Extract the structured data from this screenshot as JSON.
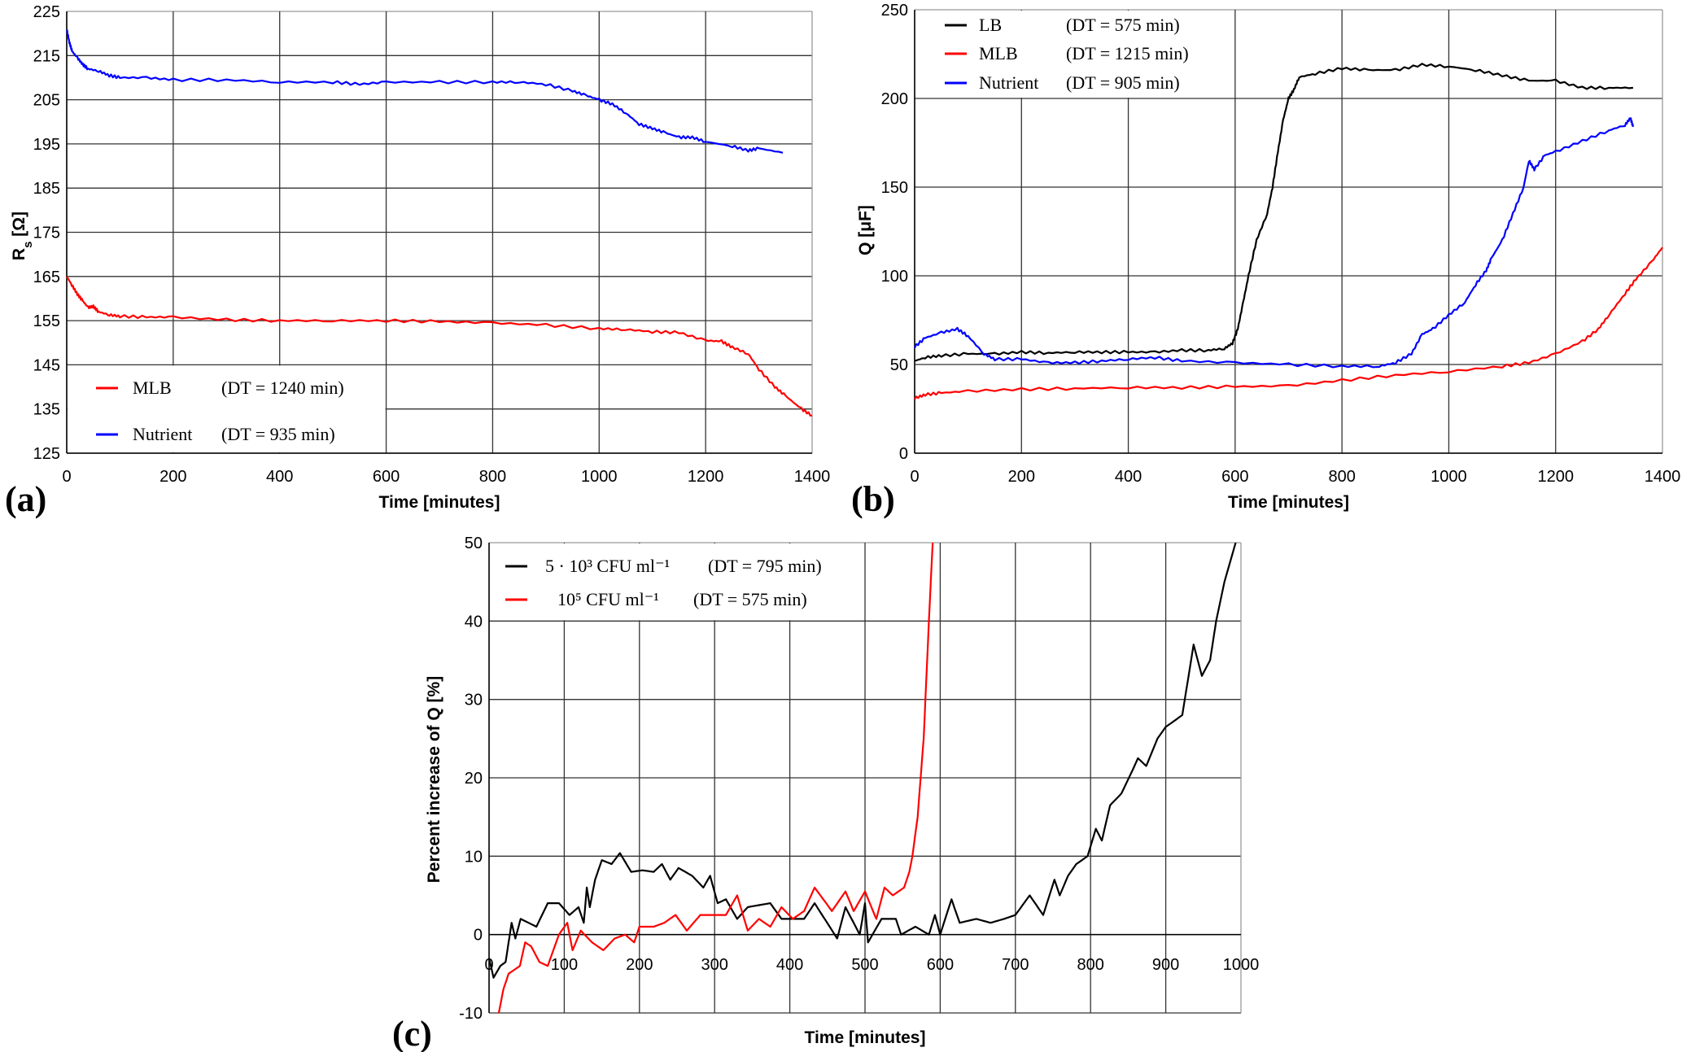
{
  "chart_data": [
    {
      "panel_label": "(a)",
      "type": "line",
      "xlabel": "Time [minutes]",
      "ylabel": {
        "base": "R",
        "sub": "s",
        "rest": " [Ω]"
      },
      "xlim": [
        0,
        1400
      ],
      "ylim": [
        125,
        225
      ],
      "xticks": [
        0,
        200,
        400,
        600,
        800,
        1000,
        1200,
        1400
      ],
      "yticks": [
        125,
        135,
        145,
        155,
        165,
        175,
        185,
        195,
        205,
        215,
        225
      ],
      "grid": true,
      "legend_placement": "bottom-left",
      "series": [
        {
          "name": "MLB",
          "dt": "(DT = 1240 min)",
          "color": "#ff0000",
          "x": [
            0,
            10,
            20,
            30,
            40,
            50,
            60,
            80,
            100,
            150,
            200,
            300,
            400,
            500,
            600,
            700,
            800,
            900,
            1000,
            1050,
            1100,
            1150,
            1200,
            1230,
            1250,
            1280,
            1300,
            1330,
            1350,
            1380,
            1400
          ],
          "y": [
            165,
            163,
            161,
            159.5,
            158,
            158.2,
            157,
            156.3,
            156,
            155.8,
            155.8,
            155.2,
            155,
            155,
            155,
            154.8,
            154.5,
            154,
            153.2,
            153,
            152.5,
            152.3,
            150.5,
            150.3,
            149,
            147.5,
            144,
            140,
            138,
            135,
            133.5
          ]
        },
        {
          "name": "Nutrient",
          "dt": "(DT = 935   min)",
          "color": "#0000ff",
          "x": [
            0,
            5,
            10,
            20,
            30,
            40,
            60,
            80,
            100,
            150,
            200,
            300,
            400,
            500,
            550,
            600,
            700,
            800,
            850,
            900,
            950,
            975,
            1000,
            1025,
            1050,
            1075,
            1100,
            1125,
            1150,
            1175,
            1200,
            1250,
            1280,
            1300,
            1345
          ],
          "y": [
            221,
            218,
            216,
            214.5,
            213,
            212,
            211.5,
            210.5,
            210,
            210,
            209.5,
            209.5,
            209,
            209,
            208.5,
            209,
            209,
            209,
            209,
            208.5,
            207,
            206,
            205,
            204,
            202,
            199.5,
            198.5,
            197.5,
            196.5,
            196.5,
            195.5,
            194.5,
            193.5,
            194,
            193
          ]
        }
      ]
    },
    {
      "panel_label": "(b)",
      "type": "line",
      "xlabel": "Time [minutes]",
      "ylabel": {
        "base": "Q [μF]",
        "sub": "",
        "rest": ""
      },
      "xlim": [
        0,
        1400
      ],
      "ylim": [
        0,
        250
      ],
      "xticks": [
        0,
        200,
        400,
        600,
        800,
        1000,
        1200,
        1400
      ],
      "yticks": [
        0,
        50,
        100,
        150,
        200,
        250
      ],
      "grid": true,
      "legend_placement": "top-left",
      "series": [
        {
          "name": "LB",
          "dt": "(DT = 575   min)",
          "color": "#000000",
          "x": [
            0,
            20,
            50,
            100,
            150,
            200,
            250,
            300,
            350,
            400,
            450,
            500,
            550,
            580,
            595,
            605,
            615,
            625,
            640,
            660,
            670,
            680,
            690,
            700,
            710,
            720,
            750,
            800,
            850,
            900,
            950,
            1000,
            1050,
            1100,
            1150,
            1200,
            1250,
            1300,
            1345
          ],
          "y": [
            52,
            54,
            55,
            56,
            56,
            57,
            56.5,
            57,
            57,
            57,
            57,
            58,
            58,
            59,
            62,
            70,
            85,
            100,
            120,
            135,
            150,
            170,
            188,
            200,
            205,
            212,
            214,
            217,
            216,
            216,
            219,
            218,
            216,
            213,
            210,
            210,
            206,
            206,
            206
          ]
        },
        {
          "name": "MLB",
          "dt": "(DT = 1215 min)",
          "color": "#ff0000",
          "x": [
            0,
            20,
            50,
            100,
            200,
            300,
            400,
            500,
            600,
            700,
            800,
            900,
            1000,
            1100,
            1150,
            1200,
            1250,
            1280,
            1300,
            1330,
            1350,
            1380,
            1400
          ],
          "y": [
            31,
            33,
            34,
            35,
            36,
            36.5,
            37,
            37,
            37.5,
            38,
            41,
            44,
            46,
            49,
            51,
            56,
            63,
            70,
            78,
            90,
            98,
            108,
            116
          ]
        },
        {
          "name": "Nutrient",
          "dt": "(DT = 905   min)",
          "color": "#0000ff",
          "x": [
            0,
            20,
            50,
            80,
            100,
            130,
            150,
            200,
            250,
            300,
            350,
            400,
            450,
            500,
            600,
            700,
            800,
            870,
            900,
            930,
            950,
            970,
            1000,
            1030,
            1050,
            1070,
            1080,
            1100,
            1120,
            1140,
            1150,
            1160,
            1180,
            1200,
            1250,
            1300,
            1330,
            1340,
            1345
          ],
          "y": [
            60,
            65,
            68,
            70,
            66,
            56,
            53,
            53,
            51,
            51,
            52,
            53,
            54,
            52,
            51,
            50,
            49,
            49,
            51,
            56,
            67,
            70,
            78,
            85,
            95,
            103,
            110,
            120,
            135,
            150,
            165,
            160,
            168,
            170,
            176,
            182,
            185,
            189,
            184
          ]
        },
        {
          "name": "",
          "dt": "",
          "color": "",
          "x": [],
          "y": []
        }
      ]
    },
    {
      "panel_label": "(c)",
      "type": "line",
      "xlabel": "Time [minutes]",
      "ylabel": {
        "base": "Percent increase of Q [%]",
        "sub": "",
        "rest": ""
      },
      "xlim": [
        0,
        1000
      ],
      "ylim": [
        -10,
        50
      ],
      "xticks": [
        0,
        100,
        200,
        300,
        400,
        500,
        600,
        700,
        800,
        900,
        1000
      ],
      "yticks": [
        -10,
        0,
        10,
        20,
        30,
        40,
        50
      ],
      "grid": true,
      "legend_placement": "top-left",
      "series": [
        {
          "name": "5 · 10³ CFU ml⁻¹",
          "dt": "(DT = 795 min)",
          "color": "#000000",
          "x": [
            0,
            6,
            15,
            22,
            30,
            35,
            42,
            63,
            78,
            93,
            107,
            119,
            126,
            130,
            134,
            141,
            150,
            163,
            174,
            189,
            204,
            219,
            230,
            241,
            252,
            270,
            285,
            294,
            304,
            315,
            330,
            344,
            374,
            389,
            419,
            433,
            463,
            474,
            493,
            500,
            504,
            522,
            541,
            548,
            567,
            585,
            593,
            600,
            615,
            626,
            648,
            667,
            685,
            700,
            719,
            737,
            752,
            759,
            770,
            781,
            796,
            807,
            815,
            826,
            841,
            856,
            863,
            874,
            889,
            900,
            922,
            937,
            948,
            959,
            967,
            978,
            993
          ],
          "y": [
            -3,
            -5.5,
            -4,
            -3.5,
            1.5,
            -0.5,
            2,
            1,
            4,
            4,
            2.5,
            3.5,
            1.5,
            6,
            3.5,
            7,
            9.5,
            9,
            10.4,
            8,
            8.2,
            8,
            9,
            7,
            8.5,
            7.5,
            6,
            7.5,
            4,
            4.5,
            2,
            3.5,
            4,
            2,
            2,
            4,
            -0.5,
            3.5,
            0,
            4,
            -1,
            2,
            2,
            0,
            1,
            0,
            2.5,
            0,
            4.5,
            1.5,
            2,
            1.5,
            2,
            2.5,
            5,
            2.5,
            7,
            5,
            7.5,
            9,
            10,
            13.5,
            12,
            16.5,
            18,
            21,
            22.5,
            21.5,
            25,
            26.5,
            28,
            37,
            33,
            35,
            40,
            45,
            50
          ]
        },
        {
          "name": "10⁵ CFU ml⁻¹",
          "dt": "(DT = 575 min)",
          "color": "#ff0000",
          "x": [
            13,
            19,
            26,
            41,
            48,
            56,
            67,
            78,
            93,
            104,
            111,
            122,
            137,
            152,
            167,
            181,
            193,
            200,
            219,
            233,
            248,
            263,
            281,
            300,
            315,
            330,
            344,
            359,
            374,
            389,
            404,
            419,
            433,
            456,
            474,
            485,
            500,
            515,
            526,
            537,
            552,
            559,
            563,
            570,
            578,
            585,
            590
          ],
          "y": [
            -10,
            -7,
            -5,
            -4,
            -1,
            -1.5,
            -3.5,
            -4,
            0,
            1.5,
            -2,
            0.5,
            -1,
            -2,
            -0.5,
            0,
            -1,
            1,
            1,
            1.5,
            2.5,
            0.5,
            2.5,
            2.5,
            2.5,
            5,
            0.5,
            2,
            1,
            3.5,
            2,
            3,
            6,
            3,
            5.5,
            3,
            5.5,
            2,
            6,
            5,
            6,
            8,
            10,
            15,
            25,
            40,
            50
          ]
        }
      ]
    }
  ]
}
